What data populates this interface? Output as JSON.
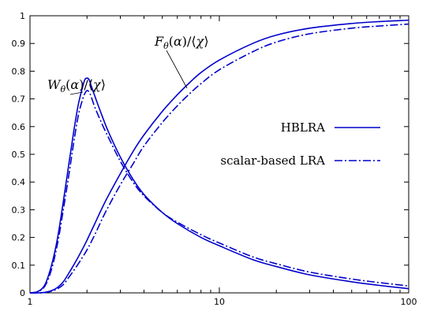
{
  "chart_data": {
    "type": "line",
    "title": "",
    "xlabel": "",
    "ylabel": "",
    "x_scale": "log",
    "xlim": [
      1,
      100
    ],
    "ylim": [
      0,
      1
    ],
    "grid": false,
    "legend_position": "right",
    "x_ticks": [
      1,
      10,
      100
    ],
    "x_tick_labels": [
      "1",
      "10",
      "100"
    ],
    "y_ticks": [
      0,
      0.1,
      0.2,
      0.3,
      0.4,
      0.5,
      0.6,
      0.7,
      0.8,
      0.9,
      1
    ],
    "y_tick_labels": [
      "0",
      "0.1",
      "0.2",
      "0.3",
      "0.4",
      "0.5",
      "0.6",
      "0.7",
      "0.8",
      "0.9",
      "1"
    ],
    "annotations": [
      {
        "text": "W_θ(α)/⟨χ⟩",
        "points_to": "W"
      },
      {
        "text": "F_θ(α)/⟨χ⟩",
        "points_to": "F"
      }
    ],
    "series": [
      {
        "name": "HBLRA",
        "style": "solid",
        "color": "#0000cc",
        "curves": {
          "W": {
            "x": [
              1.0,
              1.1,
              1.2,
              1.3,
              1.4,
              1.5,
              1.6,
              1.7,
              1.8,
              1.9,
              1.95,
              2.0,
              2.05,
              2.1,
              2.2,
              2.4,
              2.6,
              3.0,
              3.5,
              4.0,
              5.0,
              6.0,
              8.0,
              10.0,
              15.0,
              20.0,
              30.0,
              50.0,
              70.0,
              100.0
            ],
            "y": [
              0.0,
              0.005,
              0.03,
              0.1,
              0.2,
              0.33,
              0.46,
              0.58,
              0.68,
              0.745,
              0.77,
              0.775,
              0.77,
              0.75,
              0.71,
              0.64,
              0.58,
              0.49,
              0.41,
              0.355,
              0.29,
              0.25,
              0.2,
              0.17,
              0.12,
              0.095,
              0.065,
              0.04,
              0.027,
              0.015
            ]
          },
          "F": {
            "x": [
              1.0,
              1.1,
              1.2,
              1.3,
              1.4,
              1.5,
              1.6,
              1.7,
              1.8,
              1.9,
              2.0,
              2.2,
              2.5,
              3.0,
              3.5,
              4.0,
              5.0,
              6.0,
              7.0,
              8.0,
              10.0,
              15.0,
              20.0,
              30.0,
              50.0,
              70.0,
              100.0
            ],
            "y": [
              0.0,
              0.0,
              0.002,
              0.008,
              0.02,
              0.04,
              0.07,
              0.1,
              0.13,
              0.16,
              0.19,
              0.25,
              0.33,
              0.43,
              0.51,
              0.57,
              0.655,
              0.715,
              0.76,
              0.795,
              0.84,
              0.9,
              0.93,
              0.955,
              0.972,
              0.979,
              0.984
            ]
          }
        }
      },
      {
        "name": "scalar-based LRA",
        "style": "dashdot",
        "color": "#0000cc",
        "curves": {
          "W": {
            "x": [
              1.0,
              1.1,
              1.2,
              1.3,
              1.4,
              1.5,
              1.6,
              1.7,
              1.8,
              1.9,
              1.95,
              2.0,
              2.05,
              2.1,
              2.2,
              2.4,
              2.6,
              3.0,
              3.5,
              4.0,
              5.0,
              6.0,
              8.0,
              10.0,
              15.0,
              20.0,
              30.0,
              50.0,
              70.0,
              100.0
            ],
            "y": [
              0.0,
              0.004,
              0.025,
              0.085,
              0.18,
              0.3,
              0.42,
              0.54,
              0.64,
              0.7,
              0.72,
              0.73,
              0.725,
              0.71,
              0.67,
              0.61,
              0.56,
              0.475,
              0.4,
              0.35,
              0.29,
              0.255,
              0.21,
              0.18,
              0.13,
              0.105,
              0.075,
              0.05,
              0.037,
              0.025
            ]
          },
          "F": {
            "x": [
              1.0,
              1.1,
              1.2,
              1.3,
              1.4,
              1.5,
              1.6,
              1.7,
              1.8,
              1.9,
              2.0,
              2.2,
              2.5,
              3.0,
              3.5,
              4.0,
              5.0,
              6.0,
              7.0,
              8.0,
              10.0,
              15.0,
              20.0,
              30.0,
              50.0,
              70.0,
              100.0
            ],
            "y": [
              0.0,
              0.0,
              0.001,
              0.006,
              0.015,
              0.03,
              0.055,
              0.08,
              0.105,
              0.13,
              0.155,
              0.21,
              0.29,
              0.39,
              0.465,
              0.53,
              0.615,
              0.675,
              0.72,
              0.755,
              0.805,
              0.87,
              0.905,
              0.935,
              0.955,
              0.963,
              0.97
            ]
          }
        }
      }
    ]
  }
}
